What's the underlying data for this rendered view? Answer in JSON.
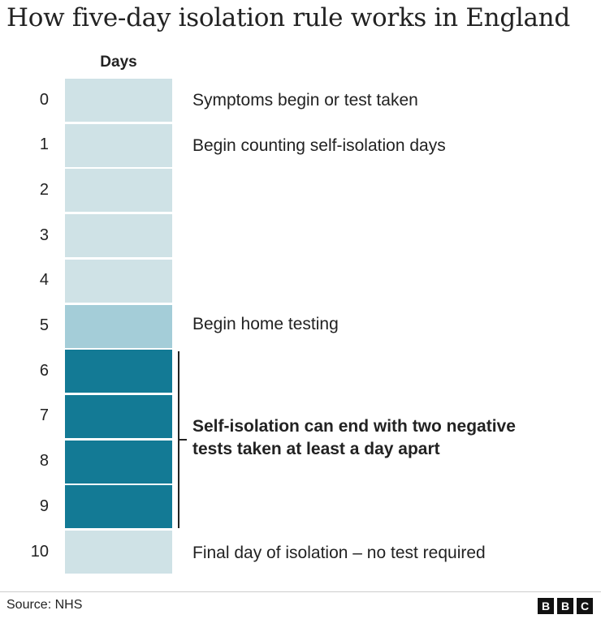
{
  "title": "How five-day isolation rule works in England",
  "column_header": "Days",
  "colors": {
    "isolation_day": "#cfe2e6",
    "home_testing": "#a4cdd8",
    "test_window": "#137a95",
    "text": "#222222"
  },
  "days": [
    {
      "label": "0",
      "phase": "isolation_day"
    },
    {
      "label": "1",
      "phase": "isolation_day"
    },
    {
      "label": "2",
      "phase": "isolation_day"
    },
    {
      "label": "3",
      "phase": "isolation_day"
    },
    {
      "label": "4",
      "phase": "isolation_day"
    },
    {
      "label": "5",
      "phase": "home_testing"
    },
    {
      "label": "6",
      "phase": "test_window"
    },
    {
      "label": "7",
      "phase": "test_window"
    },
    {
      "label": "8",
      "phase": "test_window"
    },
    {
      "label": "9",
      "phase": "test_window"
    },
    {
      "label": "10",
      "phase": "isolation_day"
    }
  ],
  "notes": {
    "day0": "Symptoms begin or test taken",
    "day1": "Begin counting self-isolation days",
    "day5": "Begin home testing",
    "window_line1": "Self-isolation can end with two negative",
    "window_line2": "tests taken at least a day apart",
    "day10": "Final day of isolation – no test required"
  },
  "footer": {
    "source": "Source: NHS",
    "logo": [
      "B",
      "B",
      "C"
    ]
  }
}
